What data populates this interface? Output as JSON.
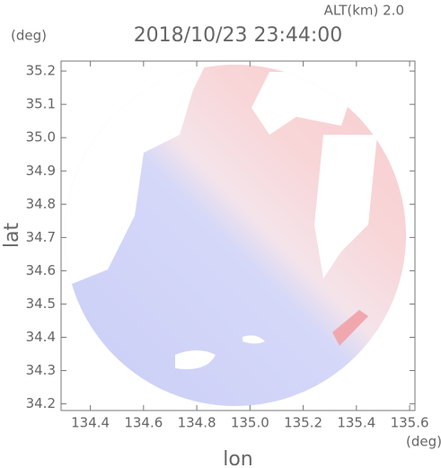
{
  "chart_data": {
    "type": "radar-field",
    "title": "2018/10/23 23:44:00",
    "altitude_label": "ALT(km) 2.0",
    "y_unit": "(deg)",
    "x_unit": "(deg)",
    "x_label": "lon",
    "y_label": "lat",
    "xlim": [
      134.29,
      135.62
    ],
    "ylim": [
      34.18,
      35.23
    ],
    "xticks": [
      134.4,
      134.6,
      134.8,
      {
        "value": 135.0,
        "label": "135.0"
      },
      135.2,
      135.4,
      135.6
    ],
    "yticks": [
      34.2,
      34.3,
      34.4,
      34.5,
      34.6,
      34.7,
      34.8,
      34.9,
      {
        "value": 35.0,
        "label": "35.0"
      },
      35.1,
      35.2
    ]
  }
}
